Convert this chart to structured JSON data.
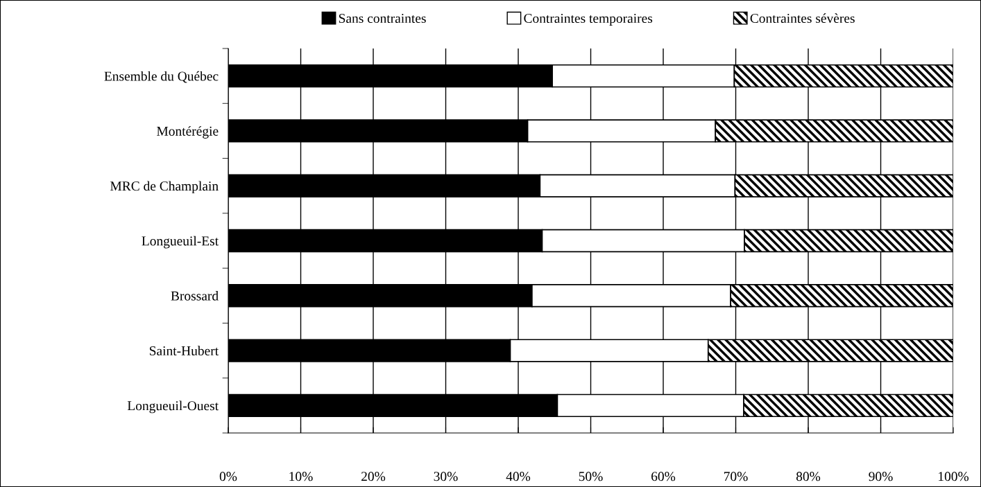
{
  "chart_data": {
    "type": "bar",
    "orientation": "horizontal",
    "stacked": true,
    "categories": [
      "Ensemble du Québec",
      "Montérégie",
      "MRC de Champlain",
      "Longueuil-Est",
      "Brossard",
      "Saint-Hubert",
      "Longueuil-Ouest"
    ],
    "series": [
      {
        "name": "Sans contraintes",
        "color": "#000000",
        "values": [
          44.7,
          41.3,
          43.0,
          43.3,
          41.9,
          38.9,
          45.4
        ]
      },
      {
        "name": "Contraintes temporaires",
        "color": "#ffffff",
        "values": [
          25.1,
          25.9,
          26.9,
          27.9,
          27.4,
          27.3,
          25.7
        ]
      },
      {
        "name": "Contraintes sévères",
        "color": "#000000",
        "values": [
          30.2,
          32.8,
          30.1,
          28.8,
          30.7,
          33.8,
          28.9
        ]
      }
    ],
    "xlim": [
      0,
      100
    ],
    "xticks": [
      {
        "value": 0,
        "label": "0%"
      },
      {
        "value": 10,
        "label": "10%"
      },
      {
        "value": 20,
        "label": "20%"
      },
      {
        "value": 30,
        "label": "30%"
      },
      {
        "value": 40,
        "label": "40%"
      },
      {
        "value": 50,
        "label": "50%"
      },
      {
        "value": 60,
        "label": "60%"
      },
      {
        "value": 70,
        "label": "70%"
      },
      {
        "value": 80,
        "label": "80%"
      },
      {
        "value": 90,
        "label": "90%"
      },
      {
        "value": 100,
        "label": "100%"
      }
    ],
    "grid": "x",
    "legend": "top"
  }
}
